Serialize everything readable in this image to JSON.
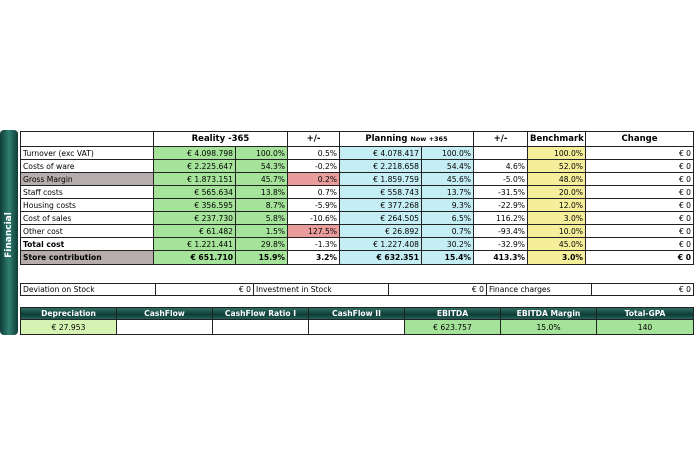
{
  "side_label": "Financial",
  "headers": {
    "reality": "Reality -365",
    "pm1": "+/-",
    "planning": "Planning",
    "planning_sub": "Now +365",
    "pm2": "+/-",
    "benchmark": "Benchmark",
    "change": "Change"
  },
  "rows": [
    {
      "label": "Turnover (exc VAT)",
      "r_val": "€ 4.098.798",
      "r_pct": "100.0%",
      "d1": "0.5%",
      "p_val": "€ 4.078.417",
      "p_pct": "100.0%",
      "d2": "",
      "bench": "100.0%",
      "change": "€ 0"
    },
    {
      "label": "Costs of ware",
      "r_val": "€ 2.225.647",
      "r_pct": "54.3%",
      "d1": "-0.2%",
      "p_val": "€ 2.218.658",
      "p_pct": "54.4%",
      "d2": "4.6%",
      "bench": "52.0%",
      "change": "€ 0"
    },
    {
      "label": "Gross Margin",
      "r_val": "€ 1.873.151",
      "r_pct": "45.7%",
      "d1": "0.2%",
      "p_val": "€ 1.859.759",
      "p_pct": "45.6%",
      "d2": "-5.0%",
      "bench": "48.0%",
      "change": "€ 0"
    },
    {
      "label": "Staff costs",
      "r_val": "€ 565.634",
      "r_pct": "13.8%",
      "d1": "0.7%",
      "p_val": "€ 558.743",
      "p_pct": "13.7%",
      "d2": "-31.5%",
      "bench": "20.0%",
      "change": "€ 0"
    },
    {
      "label": "Housing costs",
      "r_val": "€ 356.595",
      "r_pct": "8.7%",
      "d1": "-5.9%",
      "p_val": "€ 377.268",
      "p_pct": "9.3%",
      "d2": "-22.9%",
      "bench": "12.0%",
      "change": "€ 0"
    },
    {
      "label": "Cost of sales",
      "r_val": "€ 237.730",
      "r_pct": "5.8%",
      "d1": "-10.6%",
      "p_val": "€ 264.505",
      "p_pct": "6.5%",
      "d2": "116.2%",
      "bench": "3.0%",
      "change": "€ 0"
    },
    {
      "label": "Other cost",
      "r_val": "€ 61.482",
      "r_pct": "1.5%",
      "d1": "127.5%",
      "p_val": "€ 26.892",
      "p_pct": "0.7%",
      "d2": "-93.4%",
      "bench": "10.0%",
      "change": "€ 0"
    },
    {
      "label": "Total cost",
      "r_val": "€ 1.221.441",
      "r_pct": "29.8%",
      "d1": "-1.3%",
      "p_val": "€ 1.227.408",
      "p_pct": "30.2%",
      "d2": "-32.9%",
      "bench": "45.0%",
      "change": "€ 0"
    },
    {
      "label": "Store contribution",
      "r_val": "€ 651.710",
      "r_pct": "15.9%",
      "d1": "3.2%",
      "p_val": "€ 632.351",
      "p_pct": "15.4%",
      "d2": "413.3%",
      "bench": "3.0%",
      "change": "€ 0"
    }
  ],
  "deviation": {
    "dev_label": "Deviation on Stock",
    "dev_val": "€ 0",
    "inv_label": "Investment in Stock",
    "inv_val": "€ 0",
    "fin_label": "Finance charges",
    "fin_val": "€ 0"
  },
  "bottom": {
    "headers": [
      "Depreciation",
      "CashFlow",
      "CashFlow Ratio I",
      "CashFlow II",
      "EBITDA",
      "EBITDA Margin",
      "Total-GPA"
    ],
    "values": [
      "€ 27.953",
      "",
      "",
      "",
      "€ 623.757",
      "15.0%",
      "140"
    ]
  }
}
